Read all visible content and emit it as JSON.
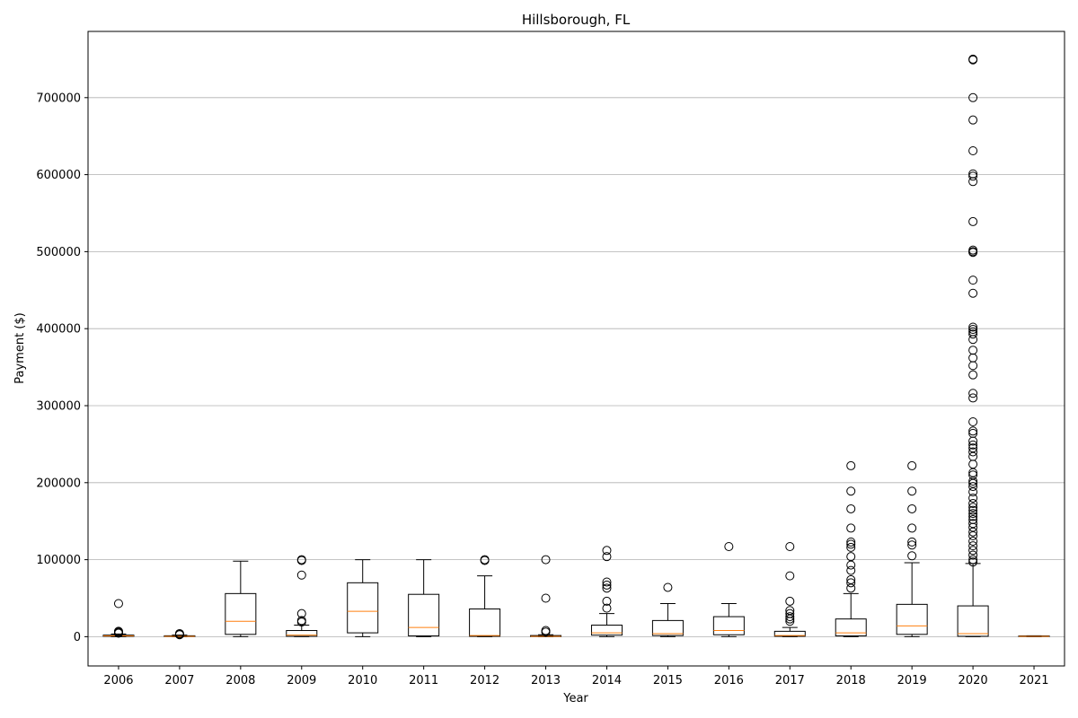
{
  "chart_data": {
    "type": "box",
    "title": "Hillsborough, FL",
    "xlabel": "Year",
    "ylabel": "Payment ($)",
    "ylim": [
      -38000,
      786000
    ],
    "yticks": [
      0,
      100000,
      200000,
      300000,
      400000,
      500000,
      600000,
      700000
    ],
    "grid": "y",
    "colors": {
      "box": "#000000",
      "median": "#ff7f0e",
      "grid": "#b0b0b0"
    },
    "categories": [
      "2006",
      "2007",
      "2008",
      "2009",
      "2010",
      "2011",
      "2012",
      "2013",
      "2014",
      "2015",
      "2016",
      "2017",
      "2018",
      "2019",
      "2020",
      "2021"
    ],
    "boxes": [
      {
        "year": "2006",
        "whisker_low": 0,
        "q1": 500,
        "median": 1000,
        "q3": 2000,
        "whisker_high": 3500,
        "outliers": [
          43000,
          7000,
          6000,
          5000,
          4500
        ]
      },
      {
        "year": "2007",
        "whisker_low": 0,
        "q1": 200,
        "median": 500,
        "q3": 1200,
        "whisker_high": 2000,
        "outliers": [
          4000,
          3000,
          2500
        ]
      },
      {
        "year": "2008",
        "whisker_low": 0,
        "q1": 3000,
        "median": 20000,
        "q3": 56000,
        "whisker_high": 98000,
        "outliers": []
      },
      {
        "year": "2009",
        "whisker_low": 0,
        "q1": 500,
        "median": 2000,
        "q3": 8000,
        "whisker_high": 15000,
        "outliers": [
          100000,
          99000,
          80000,
          30000,
          21000,
          19000
        ]
      },
      {
        "year": "2010",
        "whisker_low": 0,
        "q1": 5000,
        "median": 33000,
        "q3": 70000,
        "whisker_high": 100000,
        "outliers": []
      },
      {
        "year": "2011",
        "whisker_low": 0,
        "q1": 1000,
        "median": 12000,
        "q3": 55000,
        "whisker_high": 100000,
        "outliers": []
      },
      {
        "year": "2012",
        "whisker_low": 0,
        "q1": 500,
        "median": 1500,
        "q3": 36000,
        "whisker_high": 79000,
        "outliers": [
          100000,
          99000
        ]
      },
      {
        "year": "2013",
        "whisker_low": 0,
        "q1": 200,
        "median": 500,
        "q3": 1500,
        "whisker_high": 2500,
        "outliers": [
          100000,
          50000,
          8000,
          6000
        ]
      },
      {
        "year": "2014",
        "whisker_low": 0,
        "q1": 2000,
        "median": 5000,
        "q3": 15000,
        "whisker_high": 30000,
        "outliers": [
          112000,
          104000,
          71000,
          67000,
          63000,
          46000,
          37000
        ]
      },
      {
        "year": "2015",
        "whisker_low": 0,
        "q1": 1500,
        "median": 4000,
        "q3": 21000,
        "whisker_high": 43000,
        "outliers": [
          64000
        ]
      },
      {
        "year": "2016",
        "whisker_low": 0,
        "q1": 2500,
        "median": 8000,
        "q3": 26000,
        "whisker_high": 43000,
        "outliers": [
          117000
        ]
      },
      {
        "year": "2017",
        "whisker_low": 0,
        "q1": 500,
        "median": 1500,
        "q3": 7000,
        "whisker_high": 12000,
        "outliers": [
          117000,
          79000,
          46000,
          34000,
          30000,
          26000,
          23000,
          20000
        ]
      },
      {
        "year": "2018",
        "whisker_low": 0,
        "q1": 1000,
        "median": 5000,
        "q3": 23000,
        "whisker_high": 56000,
        "outliers": [
          222000,
          189000,
          166000,
          141000,
          123000,
          120000,
          116000,
          104000,
          93000,
          86000,
          74000,
          70000,
          63000
        ]
      },
      {
        "year": "2019",
        "whisker_low": 0,
        "q1": 3000,
        "median": 14000,
        "q3": 42000,
        "whisker_high": 96000,
        "outliers": [
          222000,
          189000,
          166000,
          141000,
          123000,
          119000,
          105000
        ]
      },
      {
        "year": "2020",
        "whisker_low": 0,
        "q1": 500,
        "median": 4000,
        "q3": 40000,
        "whisker_high": 95000,
        "outliers": [
          750000,
          749000,
          700000,
          671000,
          631000,
          601000,
          598000,
          591000,
          539000,
          502000,
          500000,
          499000,
          463000,
          446000,
          402000,
          399000,
          396000,
          393000,
          386000,
          372000,
          362000,
          352000,
          340000,
          316000,
          310000,
          279000,
          267000,
          264000,
          254000,
          249000,
          245000,
          240000,
          234000,
          224000,
          213000,
          210000,
          202000,
          199000,
          195000,
          188000,
          180000,
          173000,
          168000,
          164000,
          160000,
          156000,
          152000,
          147000,
          142000,
          136000,
          131000,
          124000,
          118000,
          112000,
          106000,
          100000,
          97000
        ]
      },
      {
        "year": "2021",
        "whisker_low": 0,
        "q1": 200,
        "median": 500,
        "q3": 1000,
        "whisker_high": 1200,
        "outliers": []
      }
    ]
  }
}
